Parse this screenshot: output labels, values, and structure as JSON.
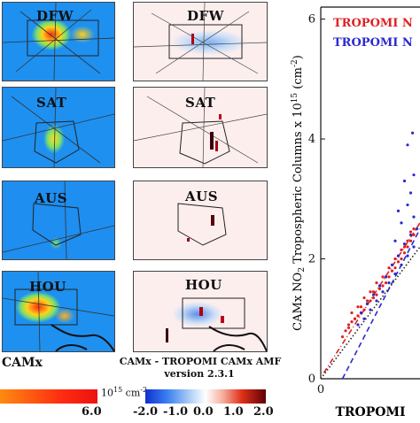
{
  "maps": {
    "left_caption": "CAMx",
    "right_caption_line1": "CAMx - TROPOMI CAMx AMF",
    "right_caption_line2": "version 2.3.1",
    "rows": [
      {
        "label": "DFW"
      },
      {
        "label": "SAT"
      },
      {
        "label": "AUS"
      },
      {
        "label": "HOU"
      }
    ]
  },
  "colorbars": {
    "left": {
      "max_label": "6.0",
      "unit": "10",
      "unit_sup": "15",
      "unit_tail": " cm",
      "unit_tail_sup": "-2",
      "low_color": "#2b6fe0",
      "high_color": "#e02020"
    },
    "right": {
      "tick_labels": [
        "-2.0",
        "-1.0",
        "0.0",
        "1.0",
        "2.0"
      ]
    }
  },
  "chart_data": {
    "type": "scatter",
    "title": "",
    "ylabel_main": "CAMx NO",
    "ylabel_sub": "2",
    "ylabel_mid": " Tropospheric Columns x 10",
    "ylabel_sup": "15",
    "ylabel_tail": " (cm",
    "ylabel_tail_sup": "-2",
    "ylabel_close": ")",
    "xlabel": "TROPOMI",
    "yticks": [
      0,
      2,
      4,
      6
    ],
    "xticks": [
      0
    ],
    "ylim": [
      0,
      6.2
    ],
    "xlim": [
      0,
      1.6
    ],
    "legend": [
      {
        "name": "TROPOMI N",
        "color": "#e02020"
      },
      {
        "name": "TROPOMI N",
        "color": "#2a2ad0"
      }
    ],
    "series": [
      {
        "name": "TROPOMI N",
        "color": "#e02020",
        "x": [
          0.35,
          0.4,
          0.45,
          0.5,
          0.55,
          0.6,
          0.65,
          0.7,
          0.75,
          0.8,
          0.85,
          0.9,
          0.95,
          1.0,
          1.05,
          1.1,
          1.15,
          1.2,
          1.25,
          1.3,
          1.35,
          1.4,
          1.45,
          1.5,
          0.5,
          0.6,
          0.7,
          0.8,
          0.9,
          1.0,
          1.1,
          1.2,
          1.3,
          1.4,
          1.5,
          0.45,
          0.55,
          0.65,
          0.75,
          0.85,
          0.95,
          1.05,
          1.15,
          1.25,
          1.35,
          1.45
        ],
        "y": [
          0.7,
          0.8,
          0.9,
          0.95,
          1.0,
          1.05,
          1.1,
          1.15,
          1.25,
          1.3,
          1.35,
          1.4,
          1.5,
          1.55,
          1.6,
          1.7,
          1.8,
          1.85,
          1.95,
          2.0,
          2.1,
          2.2,
          2.3,
          2.4,
          1.1,
          1.2,
          1.35,
          1.45,
          1.6,
          1.7,
          1.85,
          2.0,
          2.15,
          2.3,
          2.5,
          0.85,
          1.0,
          1.2,
          1.3,
          1.45,
          1.55,
          1.7,
          1.9,
          2.05,
          2.2,
          2.45
        ]
      },
      {
        "name": "TROPOMI N",
        "color": "#2a2ad0",
        "x": [
          0.6,
          0.7,
          0.8,
          0.9,
          1.0,
          1.1,
          1.2,
          1.3,
          1.4,
          1.5,
          1.55,
          0.65,
          0.75,
          0.85,
          0.95,
          1.05,
          1.15,
          1.25,
          1.35,
          1.45,
          1.5,
          1.2,
          1.3,
          1.4,
          1.45,
          1.5,
          1.35,
          1.25,
          1.4,
          1.48
        ],
        "y": [
          0.9,
          1.0,
          1.15,
          1.3,
          1.45,
          1.6,
          1.75,
          1.9,
          2.05,
          2.2,
          2.5,
          1.1,
          1.25,
          1.4,
          1.55,
          1.7,
          1.9,
          2.05,
          2.25,
          2.4,
          2.7,
          2.3,
          2.6,
          2.9,
          3.1,
          3.4,
          3.3,
          2.8,
          3.9,
          4.1
        ]
      }
    ],
    "fit_lines": [
      {
        "color": "#e02020",
        "style": "dashdot",
        "x": [
          0.05,
          1.6
        ],
        "y": [
          0.1,
          2.6
        ]
      },
      {
        "color": "#2a2ad0",
        "style": "dashed",
        "x": [
          0.35,
          1.6
        ],
        "y": [
          0.0,
          2.5
        ]
      },
      {
        "color": "#222222",
        "style": "dotted",
        "x": [
          0.0,
          1.6
        ],
        "y": [
          0.0,
          2.2
        ]
      }
    ]
  }
}
